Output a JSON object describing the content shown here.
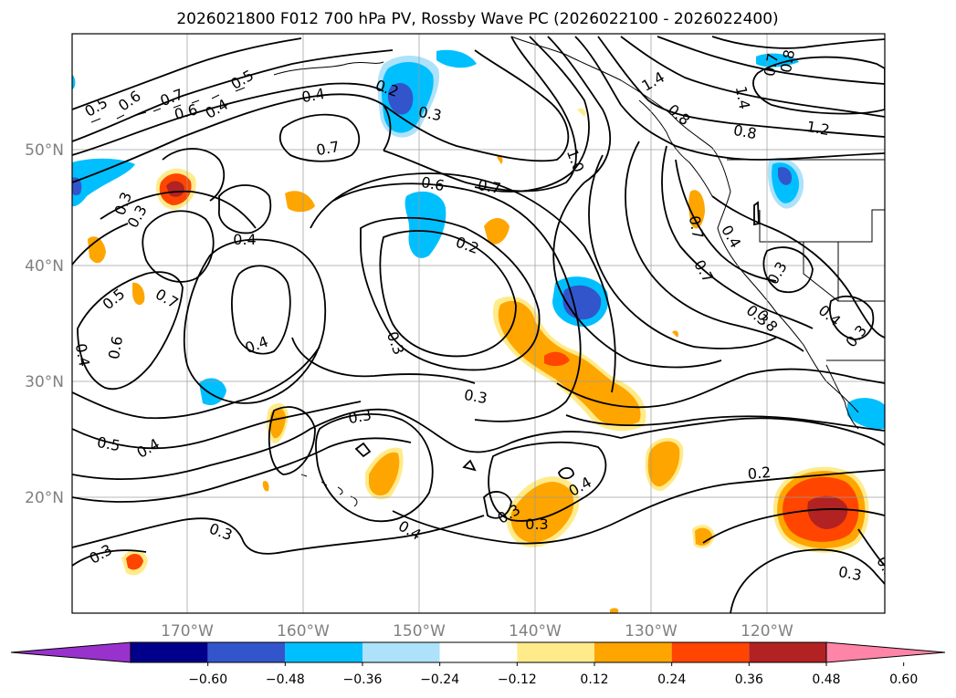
{
  "title": "2026021800 F012 700 hPa PV, Rossby Wave PC (2026022100 - 2026022400)",
  "axes": {
    "lon_labels": [
      "170°W",
      "160°W",
      "150°W",
      "140°W",
      "130°W",
      "120°W"
    ],
    "lat_labels": [
      "50°N",
      "40°N",
      "30°N",
      "20°N"
    ]
  },
  "colorbar": {
    "ticks": [
      "−0.60",
      "−0.48",
      "−0.36",
      "−0.24",
      "−0.12",
      "0.12",
      "0.24",
      "0.36",
      "0.48",
      "0.60"
    ],
    "colors": [
      "#9932CC",
      "#00008B",
      "#3355CC",
      "#00BFFF",
      "#ADE2FA",
      "#FFFFFF",
      "#FFEB8A",
      "#FFA500",
      "#FF4500",
      "#B22222",
      "#FF85A8"
    ]
  },
  "contour_labels": [
    "0.5",
    "0.6",
    "0.7",
    "0.6",
    "0.4",
    "0.5",
    "0.2",
    "0.4",
    "0.3",
    "0.7",
    "0.4",
    "0.6",
    "0.7",
    "0.2",
    "1.0",
    "1.4",
    "1.2",
    "0.8",
    "0.8",
    "1.4",
    "0.7",
    "0.8",
    "0.3",
    "0.3",
    "0.5",
    "0.5",
    "0.6",
    "0.7",
    "0.4",
    "0.4",
    "0.3",
    "0.3",
    "0.3",
    "0.4",
    "0.3",
    "0.3",
    "0.4",
    "0.2",
    "0.3",
    "0.5",
    "0.4",
    "0.3",
    "0.7",
    "0.3",
    "0.4",
    "0.7",
    "0.8",
    "0.4",
    "0.3",
    "0.3",
    "0.3"
  ]
}
